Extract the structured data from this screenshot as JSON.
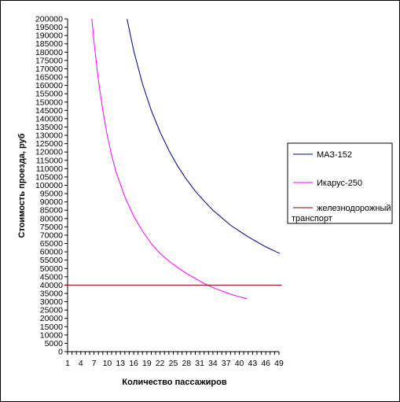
{
  "chart_data": {
    "type": "line",
    "title": "",
    "xlabel": "Количество пассажиров",
    "ylabel": "Стоимость проезда, руб",
    "xlim": [
      1,
      49
    ],
    "ylim": [
      0,
      200000
    ],
    "y_step": 5000,
    "x_ticks": [
      1,
      4,
      7,
      10,
      13,
      16,
      19,
      22,
      25,
      28,
      31,
      34,
      37,
      40,
      43,
      46,
      49
    ],
    "grid": false,
    "legend_position": "right",
    "series": [
      {
        "name": "МАЗ-152",
        "color": "#000080",
        "x": [
          14.5,
          16,
          18,
          20,
          22,
          24,
          26,
          28,
          30,
          32,
          34,
          36,
          38,
          40,
          42,
          44,
          46,
          48,
          49.2
        ],
        "y": [
          200000,
          181000,
          161000,
          145000,
          132000,
          121000,
          111500,
          103500,
          96500,
          90500,
          85000,
          80500,
          76000,
          72500,
          69000,
          66000,
          63000,
          60500,
          59000
        ]
      },
      {
        "name": "Икарус-250",
        "color": "#ff00ff",
        "x": [
          6.5,
          7,
          8,
          9,
          10,
          11,
          12,
          14,
          16,
          18,
          20,
          22,
          24,
          26,
          28,
          30,
          32,
          34,
          36,
          38,
          40,
          41.7
        ],
        "y": [
          200000,
          186000,
          163000,
          145000,
          130000,
          118000,
          108000,
          93000,
          81500,
          72500,
          65000,
          59000,
          54500,
          50500,
          47000,
          44000,
          41000,
          38500,
          36500,
          34500,
          33000,
          31800
        ]
      },
      {
        "name": "железнодорожный транспорт",
        "color": "#800000",
        "x": [
          0.3,
          49.6
        ],
        "y": [
          40000,
          40000
        ]
      }
    ]
  }
}
